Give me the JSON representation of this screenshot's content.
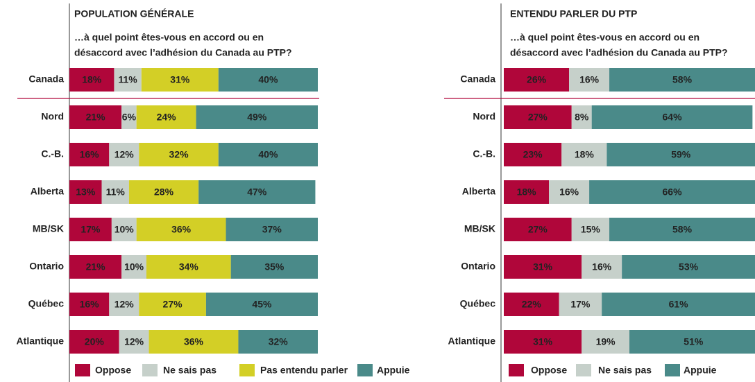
{
  "chart_data": [
    {
      "type": "stacked_barh",
      "title": "POPULATION GÉNÉRALE",
      "subtitle": [
        "…à quel point êtes-vous en accord ou en",
        "désaccord avec l’adhésion du Canada au PTP?"
      ],
      "categories": [
        "Canada",
        "Nord",
        "C.-B.",
        "Alberta",
        "MB/SK",
        "Ontario",
        "Québec",
        "Atlantique"
      ],
      "xlim": [
        0,
        100
      ],
      "series": [
        {
          "name": "Oppose",
          "color": "#b0063a",
          "values": [
            18,
            21,
            16,
            13,
            17,
            21,
            16,
            20
          ],
          "value_labels": [
            "18%",
            "21%",
            "16%",
            "13%",
            "17%",
            "21%",
            "16%",
            "20%"
          ]
        },
        {
          "name": "Ne sais pas",
          "color": "#c6d0ca",
          "values": [
            11,
            6,
            12,
            11,
            10,
            10,
            12,
            12
          ],
          "value_labels": [
            "11%",
            "6%",
            "12%",
            "11%",
            "10%",
            "10%",
            "12%",
            "12%"
          ]
        },
        {
          "name": "Pas entendu parler",
          "color": "#d3cf26",
          "values": [
            31,
            24,
            32,
            28,
            36,
            34,
            27,
            36
          ],
          "value_labels": [
            "31%",
            "24%",
            "32%",
            "28%",
            "36%",
            "34%",
            "27%",
            "36%"
          ]
        },
        {
          "name": "Appuie",
          "color": "#4a8a89",
          "values": [
            40,
            49,
            40,
            47,
            37,
            35,
            45,
            32
          ],
          "value_labels": [
            "40%",
            "49%",
            "40%",
            "47%",
            "37%",
            "35%",
            "45%",
            "32%"
          ]
        }
      ]
    },
    {
      "type": "stacked_barh",
      "title": "ENTENDU PARLER DU PTP",
      "subtitle": [
        "…à quel point êtes-vous en accord ou en",
        "désaccord avec l’adhésion du Canada au PTP?"
      ],
      "categories": [
        "Canada",
        "Nord",
        "C.-B.",
        "Alberta",
        "MB/SK",
        "Ontario",
        "Québec",
        "Atlantique"
      ],
      "xlim": [
        0,
        100
      ],
      "series": [
        {
          "name": "Oppose",
          "color": "#b0063a",
          "values": [
            26,
            27,
            23,
            18,
            27,
            31,
            22,
            31
          ],
          "value_labels": [
            "26%",
            "27%",
            "23%",
            "18%",
            "27%",
            "31%",
            "22%",
            "31%"
          ]
        },
        {
          "name": "Ne sais pas",
          "color": "#c6d0ca",
          "values": [
            16,
            8,
            18,
            16,
            15,
            16,
            17,
            19
          ],
          "value_labels": [
            "16%",
            "8%",
            "18%",
            "16%",
            "15%",
            "16%",
            "17%",
            "19%"
          ]
        },
        {
          "name": "Appuie",
          "color": "#4a8a89",
          "values": [
            58,
            64,
            59,
            66,
            58,
            53,
            61,
            51
          ],
          "value_labels": [
            "58%",
            "64%",
            "59%",
            "66%",
            "58%",
            "53%",
            "61%",
            "51%"
          ]
        }
      ]
    }
  ]
}
